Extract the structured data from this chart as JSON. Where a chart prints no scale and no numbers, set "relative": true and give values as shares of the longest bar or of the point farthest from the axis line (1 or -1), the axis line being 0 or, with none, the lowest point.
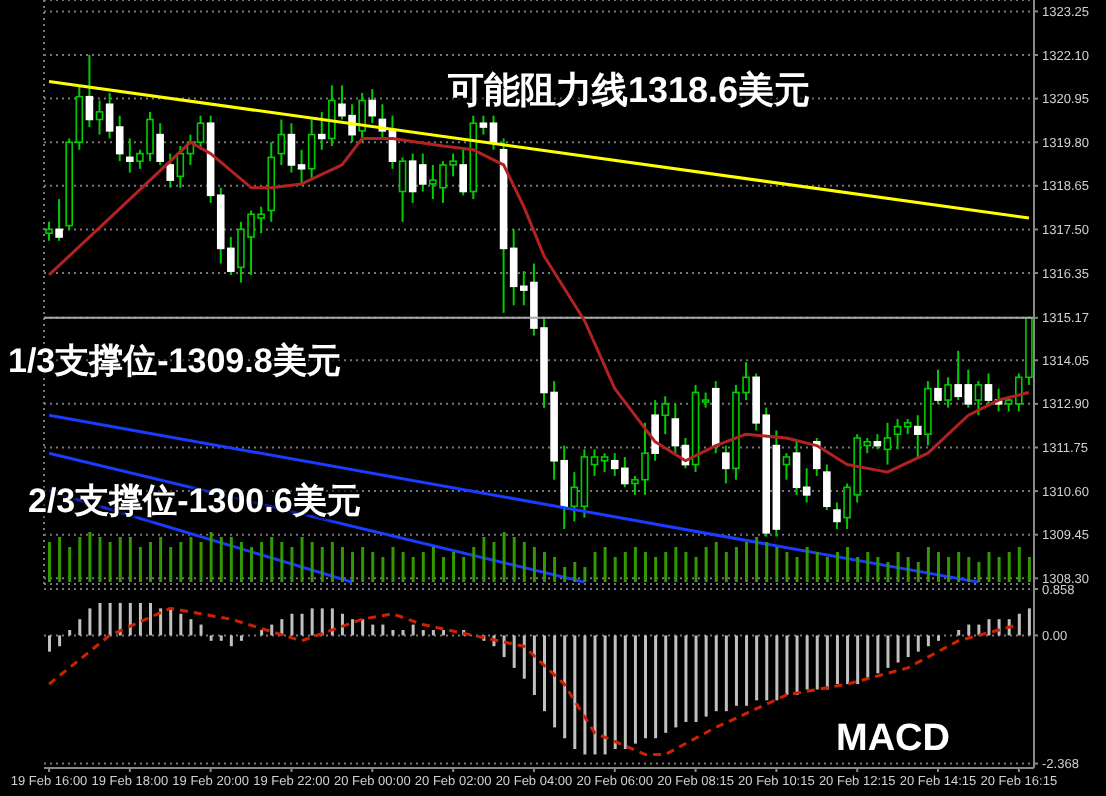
{
  "chart_data": [
    {
      "type": "candlestick",
      "color": "#00cc00",
      "tick_labels": "y",
      "grid": true,
      "colors": [
        "#00cc00",
        "#ffffff",
        "#00cc00",
        "#00cc00",
        "#ffffff",
        "#00cc00",
        "#ffffff",
        "#ffffff",
        "#ffffff",
        "#00cc00",
        "#00cc00",
        "#ffffff",
        "#ffffff",
        "#00cc00",
        "#00cc00",
        "#00cc00",
        "#ffffff",
        "#ffffff",
        "#ffffff",
        "#00cc00",
        "#00cc00",
        "#00cc00",
        "#00cc00",
        "#00cc00",
        "#ffffff",
        "#ffffff",
        "#00cc00",
        "#ffffff",
        "#00cc00",
        "#ffffff",
        "#ffffff",
        "#00cc00",
        "#ffffff",
        "#ffffff",
        "#ffffff",
        "#00cc00",
        "#ffffff",
        "#ffffff",
        "#00cc00",
        "#00cc00",
        "#00cc00",
        "#ffffff",
        "#00cc00",
        "#ffffff",
        "#ffffff",
        "#ffffff",
        "#ffffff",
        "#ffffff",
        "#ffffff",
        "#ffffff",
        "#ffffff",
        "#ffffff",
        "#00cc00",
        "#00cc00",
        "#00cc00",
        "#00cc00",
        "#ffffff",
        "#ffffff",
        "#00cc00",
        "#00cc00",
        "#ffffff",
        "#00cc00",
        "#ffffff",
        "#ffffff",
        "#00cc00",
        "#00cc00",
        "#ffffff",
        "#ffffff",
        "#00cc00",
        "#00cc00",
        "#ffffff",
        "#ffffff",
        "#ffffff",
        "#00cc00",
        "#ffffff",
        "#ffffff",
        "#ffffff",
        "#ffffff",
        "#ffffff",
        "#00cc00",
        "#00cc00",
        "#00cc00",
        "#ffffff",
        "#00cc00",
        "#00cc00",
        "#00cc00",
        "#ffffff",
        "#00cc00",
        "#ffffff",
        "#00cc00",
        "#ffffff",
        "#ffffff",
        "#00cc00",
        "#ffffff",
        "#ffffff",
        "#00cc00",
        "#00cc00",
        "#00cc00"
      ],
      "categories": [
        null,
        null,
        null,
        null,
        null,
        null,
        null,
        null,
        null,
        null,
        null,
        null,
        null,
        null,
        null,
        null,
        null,
        null,
        null,
        null,
        null,
        null,
        null,
        null,
        null,
        null,
        null,
        null,
        null,
        null,
        null,
        null,
        null,
        null,
        null,
        null,
        null,
        null,
        null,
        null,
        null,
        null,
        null,
        null,
        null,
        null,
        null,
        null,
        null,
        null,
        null,
        null,
        null,
        null,
        null,
        null,
        null,
        null,
        null,
        null,
        null,
        null,
        null,
        null,
        null,
        null,
        null,
        null,
        null,
        null,
        null,
        null,
        null,
        null,
        null,
        null,
        null,
        null,
        null,
        null,
        null,
        null,
        null,
        null,
        null,
        null,
        null,
        null,
        null,
        null,
        null,
        null,
        null,
        null,
        null,
        null,
        null,
        null
      ],
      "ohlc": [
        [
          1317.4,
          1317.7,
          1317.2,
          1317.5
        ],
        [
          1317.5,
          1318.3,
          1317.2,
          1317.3
        ],
        [
          1317.6,
          1319.9,
          1317.5,
          1319.8
        ],
        [
          1319.8,
          1321.3,
          1319.6,
          1321.0
        ],
        [
          1321.0,
          1322.1,
          1320.2,
          1320.4
        ],
        [
          1320.4,
          1320.9,
          1320.0,
          1320.6
        ],
        [
          1320.8,
          1321.1,
          1319.9,
          1320.1
        ],
        [
          1320.2,
          1320.5,
          1319.3,
          1319.5
        ],
        [
          1319.4,
          1319.9,
          1319.0,
          1319.3
        ],
        [
          1319.3,
          1319.6,
          1319.1,
          1319.5
        ],
        [
          1319.5,
          1320.6,
          1319.3,
          1320.4
        ],
        [
          1320.0,
          1320.3,
          1319.2,
          1319.3
        ],
        [
          1319.2,
          1319.5,
          1318.6,
          1318.8
        ],
        [
          1318.9,
          1319.7,
          1318.6,
          1319.5
        ],
        [
          1319.5,
          1320.0,
          1319.2,
          1319.8
        ],
        [
          1319.8,
          1320.5,
          1319.6,
          1320.3
        ],
        [
          1320.3,
          1320.5,
          1318.2,
          1318.4
        ],
        [
          1318.4,
          1318.6,
          1316.6,
          1317.0
        ],
        [
          1317.0,
          1317.3,
          1316.3,
          1316.4
        ],
        [
          1316.5,
          1317.7,
          1316.1,
          1317.5
        ],
        [
          1317.3,
          1318.0,
          1316.3,
          1317.9
        ],
        [
          1317.8,
          1318.1,
          1317.4,
          1317.9
        ],
        [
          1318.0,
          1319.8,
          1317.7,
          1319.4
        ],
        [
          1319.5,
          1320.4,
          1319.2,
          1320.0
        ],
        [
          1320.0,
          1320.3,
          1319.0,
          1319.2
        ],
        [
          1319.2,
          1319.6,
          1318.7,
          1319.1
        ],
        [
          1319.1,
          1320.4,
          1318.8,
          1320.0
        ],
        [
          1320.0,
          1320.6,
          1319.6,
          1319.9
        ],
        [
          1319.9,
          1321.3,
          1319.7,
          1320.9
        ],
        [
          1320.8,
          1321.3,
          1320.4,
          1320.5
        ],
        [
          1320.5,
          1320.8,
          1319.8,
          1320.0
        ],
        [
          1320.1,
          1321.1,
          1319.8,
          1320.9
        ],
        [
          1320.9,
          1321.2,
          1320.3,
          1320.5
        ],
        [
          1320.4,
          1320.8,
          1319.9,
          1320.1
        ],
        [
          1320.1,
          1320.5,
          1319.1,
          1319.3
        ],
        [
          1318.5,
          1319.4,
          1317.7,
          1319.3
        ],
        [
          1319.3,
          1319.5,
          1318.2,
          1318.5
        ],
        [
          1319.2,
          1319.5,
          1318.5,
          1318.7
        ],
        [
          1318.7,
          1319.2,
          1318.3,
          1318.8
        ],
        [
          1318.6,
          1319.3,
          1318.2,
          1319.2
        ],
        [
          1319.2,
          1319.5,
          1318.9,
          1319.3
        ],
        [
          1319.2,
          1319.6,
          1318.4,
          1318.5
        ],
        [
          1318.5,
          1320.5,
          1318.3,
          1320.3
        ],
        [
          1320.3,
          1320.5,
          1320.0,
          1320.2
        ],
        [
          1320.3,
          1320.5,
          1319.6,
          1319.8
        ],
        [
          1319.6,
          1319.9,
          1315.3,
          1317.0
        ],
        [
          1317.0,
          1317.5,
          1315.5,
          1316.0
        ],
        [
          1316.0,
          1316.4,
          1315.5,
          1315.9
        ],
        [
          1316.1,
          1316.6,
          1314.7,
          1314.9
        ],
        [
          1314.9,
          1315.2,
          1312.8,
          1313.2
        ],
        [
          1313.2,
          1313.5,
          1310.9,
          1311.4
        ],
        [
          1311.4,
          1311.8,
          1309.6,
          1310.2
        ],
        [
          1310.2,
          1311.1,
          1309.8,
          1310.7
        ],
        [
          1310.2,
          1311.7,
          1309.9,
          1311.5
        ],
        [
          1311.3,
          1311.7,
          1311.0,
          1311.5
        ],
        [
          1311.4,
          1311.6,
          1311.1,
          1311.5
        ],
        [
          1311.4,
          1311.6,
          1311.0,
          1311.2
        ],
        [
          1311.2,
          1311.5,
          1310.7,
          1310.8
        ],
        [
          1310.8,
          1311.0,
          1310.5,
          1310.9
        ],
        [
          1310.9,
          1312.4,
          1310.5,
          1311.6
        ],
        [
          1312.6,
          1313.0,
          1311.4,
          1311.6
        ],
        [
          1312.6,
          1313.1,
          1312.1,
          1312.9
        ],
        [
          1312.5,
          1312.9,
          1311.6,
          1311.8
        ],
        [
          1311.8,
          1312.0,
          1311.2,
          1311.3
        ],
        [
          1311.3,
          1313.4,
          1311.1,
          1313.2
        ],
        [
          1313.0,
          1313.2,
          1312.8,
          1313.0
        ],
        [
          1313.3,
          1313.5,
          1311.6,
          1311.8
        ],
        [
          1311.6,
          1311.8,
          1310.8,
          1311.2
        ],
        [
          1311.2,
          1313.4,
          1310.9,
          1313.2
        ],
        [
          1313.2,
          1314.0,
          1313.0,
          1313.6
        ],
        [
          1313.6,
          1313.7,
          1312.2,
          1312.4
        ],
        [
          1312.6,
          1312.8,
          1309.4,
          1309.5
        ],
        [
          1311.8,
          1312.2,
          1309.4,
          1309.6
        ],
        [
          1311.3,
          1311.6,
          1310.9,
          1311.5
        ],
        [
          1311.6,
          1311.9,
          1310.5,
          1310.7
        ],
        [
          1310.7,
          1311.2,
          1310.3,
          1310.5
        ],
        [
          1311.9,
          1312.0,
          1311.0,
          1311.2
        ],
        [
          1311.1,
          1311.3,
          1310.1,
          1310.2
        ],
        [
          1310.1,
          1310.3,
          1309.6,
          1309.8
        ],
        [
          1309.9,
          1310.8,
          1309.6,
          1310.7
        ],
        [
          1310.5,
          1312.1,
          1310.3,
          1312.0
        ],
        [
          1311.8,
          1312.0,
          1311.6,
          1311.9
        ],
        [
          1311.9,
          1312.1,
          1311.7,
          1311.8
        ],
        [
          1311.7,
          1312.4,
          1311.3,
          1312.0
        ],
        [
          1312.1,
          1312.5,
          1311.7,
          1312.3
        ],
        [
          1312.3,
          1312.5,
          1312.1,
          1312.4
        ],
        [
          1312.3,
          1312.6,
          1311.5,
          1312.1
        ],
        [
          1312.1,
          1313.5,
          1311.8,
          1313.3
        ],
        [
          1313.3,
          1313.8,
          1312.9,
          1313.0
        ],
        [
          1313.0,
          1313.6,
          1312.8,
          1313.4
        ],
        [
          1313.4,
          1314.3,
          1313.0,
          1313.1
        ],
        [
          1313.4,
          1313.8,
          1312.8,
          1312.9
        ],
        [
          1313.0,
          1313.5,
          1312.6,
          1313.4
        ],
        [
          1313.4,
          1313.7,
          1312.9,
          1313.0
        ],
        [
          1313.0,
          1313.3,
          1312.7,
          1312.9
        ],
        [
          1312.9,
          1313.1,
          1312.7,
          1313.0
        ],
        [
          1312.9,
          1313.7,
          1312.7,
          1313.6
        ],
        [
          1313.6,
          1315.2,
          1313.4,
          1315.17
        ]
      ],
      "series": [
        {
          "type": "line",
          "color": "#ffff00",
          "values": [
            1321.4,
            null,
            null,
            null,
            null,
            null,
            null,
            null,
            null,
            null,
            null,
            null,
            null,
            null,
            null,
            null,
            null,
            null,
            null,
            null,
            null,
            null,
            null,
            null,
            null,
            null,
            null,
            null,
            null,
            null,
            null,
            null,
            null,
            null,
            null,
            null,
            null,
            null,
            null,
            null,
            null,
            null,
            null,
            null,
            null,
            null,
            null,
            null,
            null,
            null,
            null,
            null,
            null,
            null,
            null,
            null,
            null,
            null,
            null,
            null,
            null,
            null,
            null,
            null,
            null,
            null,
            null,
            null,
            null,
            null,
            null,
            null,
            null,
            null,
            null,
            null,
            null,
            null,
            null,
            null,
            null,
            null,
            null,
            null,
            null,
            null,
            null,
            null,
            null,
            null,
            null,
            null,
            null,
            null,
            null,
            null,
            null,
            1317.8
          ]
        },
        {
          "type": "line",
          "color": "#1a3cff",
          "values": [
            1312.6,
            null,
            null,
            null,
            null,
            null,
            null,
            null,
            null,
            null,
            null,
            null,
            null,
            null,
            null,
            null,
            null,
            null,
            null,
            null,
            null,
            null,
            null,
            null,
            null,
            null,
            null,
            null,
            null,
            null,
            null,
            null,
            null,
            null,
            null,
            null,
            null,
            null,
            null,
            null,
            null,
            null,
            null,
            null,
            null,
            null,
            null,
            null,
            null,
            null,
            null,
            null,
            null,
            null,
            null,
            null,
            null,
            null,
            null,
            null,
            null,
            null,
            null,
            null,
            null,
            null,
            null,
            null,
            null,
            null,
            null,
            null,
            null,
            null,
            null,
            null,
            null,
            null,
            null,
            null,
            null,
            null,
            null,
            null,
            null,
            null,
            null,
            null,
            null,
            null,
            null,
            null,
            1308.2,
            null,
            null,
            null,
            null,
            null
          ]
        },
        {
          "type": "line",
          "color": "#1a3cff",
          "values": [
            1311.6,
            null,
            null,
            null,
            null,
            null,
            null,
            null,
            null,
            null,
            null,
            null,
            null,
            null,
            null,
            null,
            null,
            null,
            null,
            null,
            null,
            null,
            null,
            null,
            null,
            null,
            null,
            null,
            null,
            null,
            null,
            null,
            null,
            null,
            null,
            null,
            null,
            null,
            null,
            null,
            null,
            null,
            null,
            null,
            null,
            null,
            null,
            null,
            null,
            null,
            null,
            null,
            null,
            1308.2,
            null,
            null,
            null,
            null,
            null,
            null,
            null,
            null,
            null,
            null,
            null,
            null,
            null,
            null,
            null,
            null,
            null,
            null,
            null,
            null,
            null,
            null,
            null,
            null,
            null,
            null,
            null,
            null,
            null,
            null,
            null,
            null,
            null,
            null,
            null,
            null,
            null,
            null,
            null,
            null,
            null,
            null,
            null,
            null
          ]
        },
        {
          "type": "line",
          "color": "#1a3cff",
          "values": [
            1310.6,
            null,
            null,
            null,
            null,
            null,
            null,
            null,
            null,
            null,
            null,
            null,
            null,
            null,
            null,
            null,
            null,
            null,
            null,
            null,
            null,
            null,
            null,
            null,
            null,
            null,
            null,
            null,
            null,
            null,
            1308.2,
            null,
            null,
            null,
            null,
            null,
            null,
            null,
            null,
            null,
            null,
            null,
            null,
            null,
            null,
            null,
            null,
            null,
            null,
            null,
            null,
            null,
            null,
            null,
            null,
            null,
            null,
            null,
            null,
            null,
            null,
            null,
            null,
            null,
            null,
            null,
            null,
            null,
            null,
            null,
            null,
            null,
            null,
            null,
            null,
            null,
            null,
            null,
            null,
            null,
            null,
            null,
            null,
            null,
            null,
            null,
            null,
            null,
            null,
            null,
            null,
            null,
            null,
            null,
            null,
            null,
            null,
            null
          ]
        },
        {
          "type": "line",
          "color": "#b22222",
          "values": [
            1316.3,
            null,
            null,
            null,
            null,
            null,
            1317.8,
            null,
            null,
            null,
            null,
            null,
            1319.3,
            null,
            1319.8,
            null,
            1319.5,
            null,
            null,
            null,
            1318.6,
            null,
            1318.6,
            null,
            null,
            1318.7,
            null,
            null,
            null,
            1319.2,
            null,
            1319.9,
            null,
            null,
            1319.9,
            null,
            null,
            null,
            null,
            1319.7,
            null,
            null,
            1319.6,
            null,
            null,
            1319.2,
            null,
            1318.1,
            null,
            1316.8,
            null,
            null,
            null,
            1315.1,
            null,
            null,
            1313.3,
            null,
            null,
            null,
            1311.9,
            null,
            null,
            1311.4,
            null,
            null,
            1311.8,
            null,
            null,
            1312.1,
            null,
            null,
            null,
            1312.0,
            null,
            null,
            1311.8,
            null,
            null,
            1311.3,
            null,
            null,
            null,
            1311.1,
            null,
            null,
            null,
            1311.6,
            null,
            null,
            null,
            1312.6,
            null,
            null,
            1313.0,
            null,
            null,
            1313.2
          ]
        }
      ],
      "ylim": [
        1308.15,
        1323.55
      ],
      "yticks": [
        {
          "value": 1308.3,
          "label": "1308.30"
        },
        1309.45,
        {
          "value": 1310.6,
          "label": "1310.60"
        },
        1311.75,
        {
          "value": 1312.9,
          "label": "1312.90"
        },
        1314.05,
        1315.17,
        1316.35,
        {
          "value": 1317.5,
          "label": "1317.50"
        },
        1318.65,
        {
          "value": 1319.8,
          "label": "1319.80"
        },
        1320.95,
        {
          "value": 1322.1,
          "label": "1322.10"
        },
        1323.25
      ],
      "ref_lines": [
        {
          "axis": "y",
          "value": 1315.17,
          "label": null,
          "color": "#aaaaaa"
        }
      ],
      "annotations": [
        "可能阻力线1318.6美元",
        "1/3支撑位-1309.8美元",
        "2/3支撑位-1300.6美元"
      ]
    },
    {
      "type": "bar",
      "relative": true,
      "tick_labels": false,
      "color": "#339900",
      "categories": [
        null,
        null,
        null,
        null,
        null,
        null,
        null,
        null,
        null,
        null,
        null,
        null,
        null,
        null,
        null,
        null,
        null,
        null,
        null,
        null,
        null,
        null,
        null,
        null,
        null,
        null,
        null,
        null,
        null,
        null,
        null,
        null,
        null,
        null,
        null,
        null,
        null,
        null,
        null,
        null,
        null,
        null,
        null,
        null,
        null,
        null,
        null,
        null,
        null,
        null,
        null,
        null,
        null,
        null,
        null,
        null,
        null,
        null,
        null,
        null,
        null,
        null,
        null,
        null,
        null,
        null,
        null,
        null,
        null,
        null,
        null,
        null,
        null,
        null,
        null,
        null,
        null,
        null,
        null,
        null,
        null,
        null,
        null,
        null,
        null,
        null,
        null,
        null,
        null,
        null,
        null,
        null,
        null,
        null,
        null,
        null,
        null,
        null
      ],
      "values": [
        0.8,
        0.9,
        0.7,
        0.9,
        1.0,
        0.9,
        0.8,
        0.9,
        0.9,
        0.7,
        0.8,
        0.9,
        0.7,
        0.8,
        0.9,
        0.8,
        1.0,
        0.9,
        0.9,
        0.8,
        0.7,
        0.8,
        0.9,
        0.8,
        0.7,
        0.9,
        0.8,
        0.7,
        0.8,
        0.7,
        0.6,
        0.7,
        0.6,
        0.5,
        0.7,
        0.6,
        0.5,
        0.6,
        0.7,
        0.5,
        0.6,
        0.5,
        0.7,
        0.9,
        0.8,
        1.0,
        0.9,
        0.8,
        0.7,
        0.6,
        0.5,
        0.3,
        0.4,
        0.3,
        0.6,
        0.7,
        0.5,
        0.6,
        0.7,
        0.6,
        0.5,
        0.6,
        0.7,
        0.6,
        0.5,
        0.7,
        0.8,
        0.6,
        0.7,
        0.8,
        0.9,
        0.8,
        0.7,
        0.6,
        0.5,
        0.7,
        0.6,
        0.5,
        0.6,
        0.7,
        0.5,
        0.6,
        0.5,
        0.4,
        0.6,
        0.5,
        0.4,
        0.7,
        0.6,
        0.5,
        0.6,
        0.5,
        0.4,
        0.6,
        0.5,
        0.6,
        0.7,
        0.5
      ]
    },
    {
      "type": "bar",
      "grid": "y",
      "categories": [
        "19 Feb 16:00",
        null,
        null,
        null,
        null,
        null,
        null,
        null,
        "19 Feb 18:00",
        null,
        null,
        null,
        null,
        null,
        null,
        null,
        "19 Feb 20:00",
        null,
        null,
        null,
        null,
        null,
        null,
        null,
        "19 Feb 22:00",
        null,
        null,
        null,
        null,
        null,
        null,
        null,
        "20 Feb 00:00",
        null,
        null,
        null,
        null,
        null,
        null,
        null,
        "20 Feb 02:00",
        null,
        null,
        null,
        null,
        null,
        null,
        null,
        "20 Feb 04:00",
        null,
        null,
        null,
        null,
        null,
        null,
        null,
        "20 Feb 06:00",
        null,
        null,
        null,
        null,
        null,
        null,
        null,
        "20 Feb 08:15",
        null,
        null,
        null,
        null,
        null,
        null,
        null,
        "20 Feb 10:15",
        null,
        null,
        null,
        null,
        null,
        null,
        null,
        "20 Feb 12:15",
        null,
        null,
        null,
        null,
        null,
        null,
        null,
        "20 Feb 14:15",
        null,
        null,
        null,
        null,
        null,
        null,
        null,
        "20 Feb 16:15",
        null
      ],
      "series": [
        {
          "type": "bar",
          "color": "#c0c0c0",
          "values": [
            -0.3,
            -0.2,
            0.1,
            0.3,
            0.5,
            0.6,
            0.6,
            0.6,
            0.6,
            0.6,
            0.6,
            0.5,
            0.5,
            0.4,
            0.3,
            0.2,
            -0.1,
            -0.1,
            -0.2,
            -0.1,
            0.0,
            0.1,
            0.2,
            0.3,
            0.4,
            0.4,
            0.5,
            0.5,
            0.5,
            0.4,
            0.3,
            0.3,
            0.2,
            0.2,
            0.1,
            0.1,
            0.2,
            0.1,
            0.1,
            0.1,
            0.0,
            0.1,
            0.0,
            -0.1,
            -0.2,
            -0.4,
            -0.6,
            -0.8,
            -1.1,
            -1.4,
            -1.7,
            -1.9,
            -2.1,
            -2.2,
            -2.2,
            -2.2,
            -2.1,
            -2.1,
            -2.0,
            -1.9,
            -1.9,
            -1.8,
            -1.7,
            -1.6,
            -1.6,
            -1.5,
            -1.4,
            -1.4,
            -1.3,
            -1.3,
            -1.2,
            -1.2,
            -1.2,
            -1.1,
            -1.1,
            -1.0,
            -1.0,
            -1.0,
            -0.9,
            -0.9,
            -0.9,
            -0.8,
            -0.7,
            -0.6,
            -0.5,
            -0.4,
            -0.3,
            -0.2,
            -0.1,
            0.0,
            0.1,
            0.2,
            0.2,
            0.3,
            0.3,
            0.3,
            0.4,
            0.5
          ]
        },
        {
          "type": "line",
          "color": "#cc2200",
          "line_style": "dashed",
          "values": [
            -0.9,
            null,
            null,
            null,
            null,
            null,
            0.0,
            null,
            null,
            null,
            null,
            null,
            0.5,
            null,
            null,
            null,
            null,
            null,
            0.3,
            null,
            null,
            null,
            null,
            null,
            null,
            -0.1,
            null,
            null,
            null,
            null,
            null,
            0.3,
            null,
            null,
            0.4,
            null,
            null,
            0.2,
            null,
            null,
            null,
            null,
            0.0,
            null,
            null,
            null,
            null,
            -0.2,
            null,
            null,
            null,
            -0.9,
            null,
            null,
            -1.8,
            null,
            null,
            null,
            null,
            -2.2,
            null,
            -2.2,
            null,
            null,
            null,
            null,
            -1.7,
            null,
            null,
            null,
            null,
            null,
            null,
            -1.1,
            null,
            null,
            null,
            null,
            null,
            -0.9,
            null,
            null,
            null,
            null,
            null,
            -0.6,
            null,
            null,
            null,
            null,
            -0.1,
            null,
            null,
            null,
            null,
            null,
            0.2,
            null
          ]
        }
      ],
      "ylim": [
        -2.45,
        0.95
      ],
      "yticks": [
        0.858,
        {
          "value": 0,
          "label": "0.00"
        },
        -2.368
      ],
      "annotations": [
        "MACD"
      ]
    }
  ]
}
